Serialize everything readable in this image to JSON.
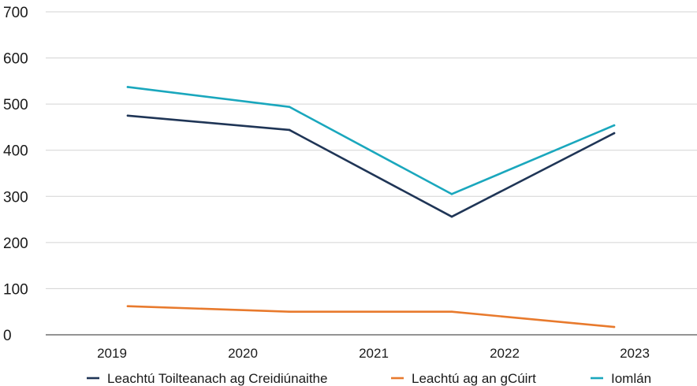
{
  "chart_data": {
    "type": "line",
    "categories": [
      "2019",
      "2020",
      "2021",
      "2022",
      "2023"
    ],
    "x": [
      0,
      1,
      1.5,
      2,
      2.5,
      4
    ],
    "yticks": [
      0,
      100,
      200,
      300,
      400,
      500,
      600,
      700
    ],
    "ylim": [
      0,
      700
    ],
    "grid": true,
    "legend_position": "bottom",
    "series": [
      {
        "name": "Leachtú Toilteanach ag Creidiúnaithe",
        "color": "#1f3556",
        "points": [
          [
            2019,
            475
          ],
          [
            2020,
            444
          ],
          [
            2021,
            256
          ],
          [
            2022,
            437
          ]
        ]
      },
      {
        "name": "Leachtú ag an gCúirt",
        "color": "#e87a2d",
        "points": [
          [
            2019,
            62
          ],
          [
            2020,
            50
          ],
          [
            2021,
            50
          ],
          [
            2022,
            17
          ]
        ]
      },
      {
        "name": "Iomlán",
        "color": "#1aa7bd",
        "points": [
          [
            2019,
            537
          ],
          [
            2020,
            494
          ],
          [
            2021,
            305
          ],
          [
            2022,
            454
          ]
        ]
      }
    ]
  }
}
